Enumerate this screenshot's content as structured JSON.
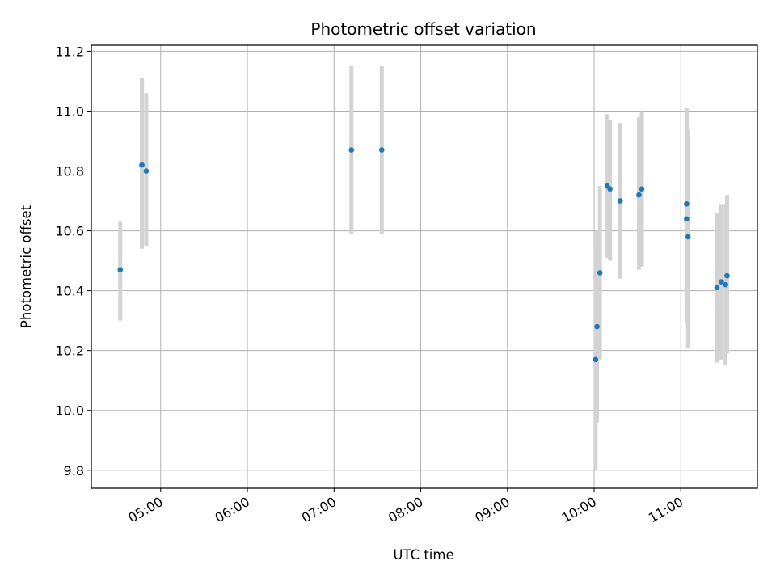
{
  "chart_data": {
    "type": "scatter",
    "title": "Photometric offset variation",
    "xlabel": "UTC time",
    "ylabel": "Photometric offset",
    "x_axis_kind": "time",
    "xlim": [
      "04:12",
      "11:53"
    ],
    "ylim": [
      9.74,
      11.22
    ],
    "x_ticks": [
      "05:00",
      "06:00",
      "07:00",
      "08:00",
      "09:00",
      "10:00",
      "11:00"
    ],
    "y_ticks": [
      "9.8",
      "10.0",
      "10.2",
      "10.4",
      "10.6",
      "10.8",
      "11.0",
      "11.2"
    ],
    "grid": true,
    "point_color": "#1f77b4",
    "errorbar_color": "#d3d3d3",
    "points": [
      {
        "x": "04:32",
        "y": 10.47,
        "lo": 10.3,
        "hi": 10.63
      },
      {
        "x": "04:47",
        "y": 10.82,
        "lo": 10.54,
        "hi": 11.11
      },
      {
        "x": "04:50",
        "y": 10.8,
        "lo": 10.55,
        "hi": 11.06
      },
      {
        "x": "07:12",
        "y": 10.87,
        "lo": 10.59,
        "hi": 11.15
      },
      {
        "x": "07:33",
        "y": 10.87,
        "lo": 10.59,
        "hi": 11.15
      },
      {
        "x": "10:01",
        "y": 10.17,
        "lo": 9.8,
        "hi": 10.54
      },
      {
        "x": "10:02",
        "y": 10.28,
        "lo": 9.96,
        "hi": 10.6
      },
      {
        "x": "10:04",
        "y": 10.46,
        "lo": 10.17,
        "hi": 10.75
      },
      {
        "x": "10:09",
        "y": 10.75,
        "lo": 10.51,
        "hi": 10.99
      },
      {
        "x": "10:11",
        "y": 10.74,
        "lo": 10.5,
        "hi": 10.97
      },
      {
        "x": "10:18",
        "y": 10.7,
        "lo": 10.44,
        "hi": 10.96
      },
      {
        "x": "10:31",
        "y": 10.72,
        "lo": 10.47,
        "hi": 10.98
      },
      {
        "x": "10:33",
        "y": 10.74,
        "lo": 10.48,
        "hi": 11.0
      },
      {
        "x": "11:04",
        "y": 10.69,
        "lo": 10.37,
        "hi": 11.01
      },
      {
        "x": "11:04",
        "y": 10.64,
        "lo": 10.29,
        "hi": 10.99
      },
      {
        "x": "11:05",
        "y": 10.58,
        "lo": 10.21,
        "hi": 10.94
      },
      {
        "x": "11:25",
        "y": 10.41,
        "lo": 10.16,
        "hi": 10.66
      },
      {
        "x": "11:28",
        "y": 10.43,
        "lo": 10.17,
        "hi": 10.69
      },
      {
        "x": "11:31",
        "y": 10.42,
        "lo": 10.15,
        "hi": 10.69
      },
      {
        "x": "11:32",
        "y": 10.45,
        "lo": 10.19,
        "hi": 10.72
      }
    ]
  }
}
